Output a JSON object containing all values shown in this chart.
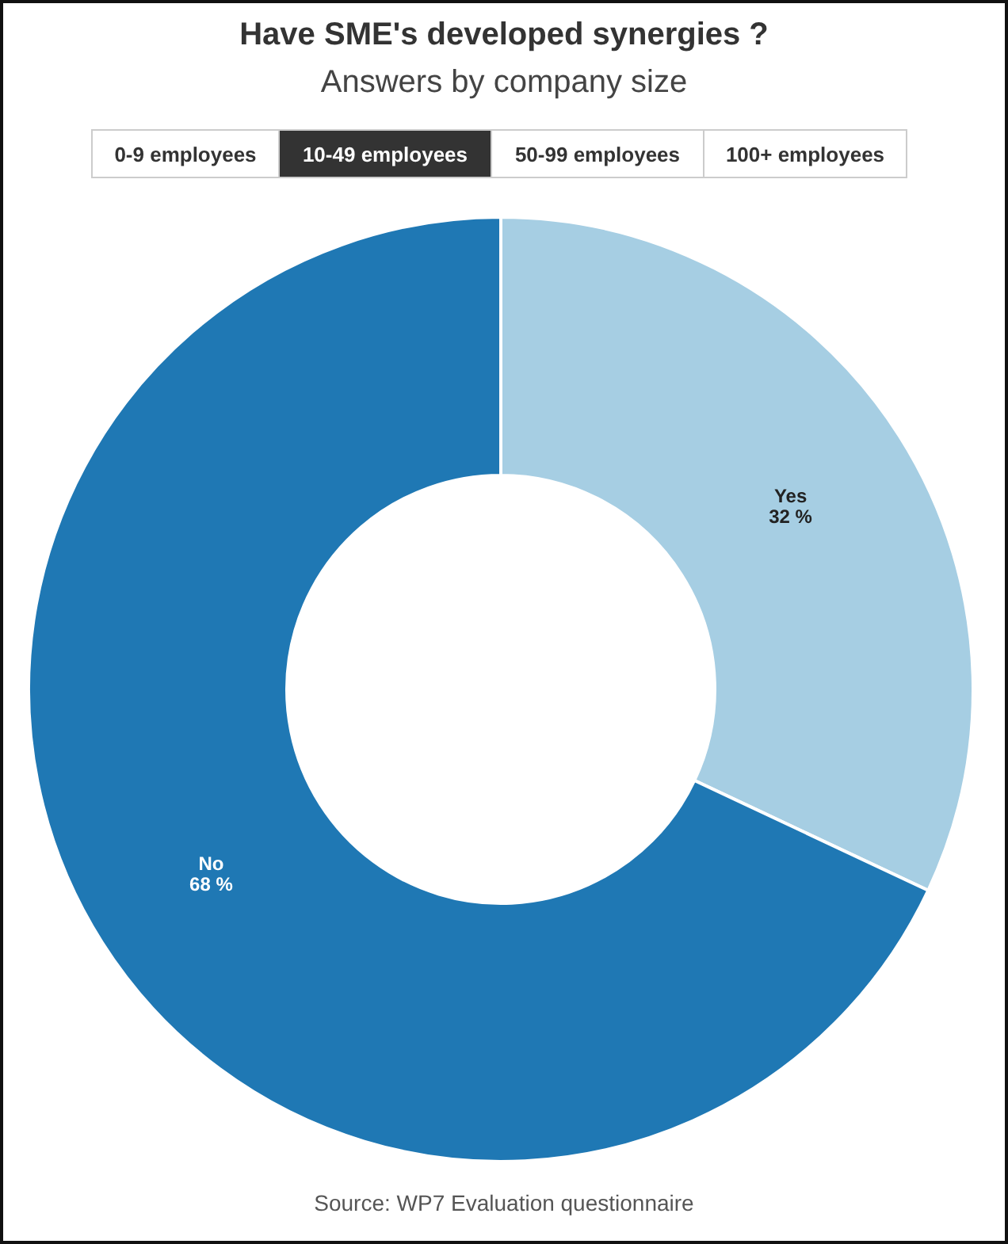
{
  "chart_data": {
    "type": "donut",
    "title": "Have SME's developed synergies ?",
    "subtitle": "Answers by company size",
    "categories": [
      "Yes",
      "No"
    ],
    "values": [
      32,
      68
    ],
    "colors": [
      "#a6cee3",
      "#1f78b4"
    ],
    "value_labels": [
      "32 %",
      "68 %"
    ],
    "annotations": [
      "0-9 employees",
      "10-49 employees",
      "50-99 employees",
      "100+ employees",
      "Source: WP7 Evaluation questionnaire"
    ]
  }
}
